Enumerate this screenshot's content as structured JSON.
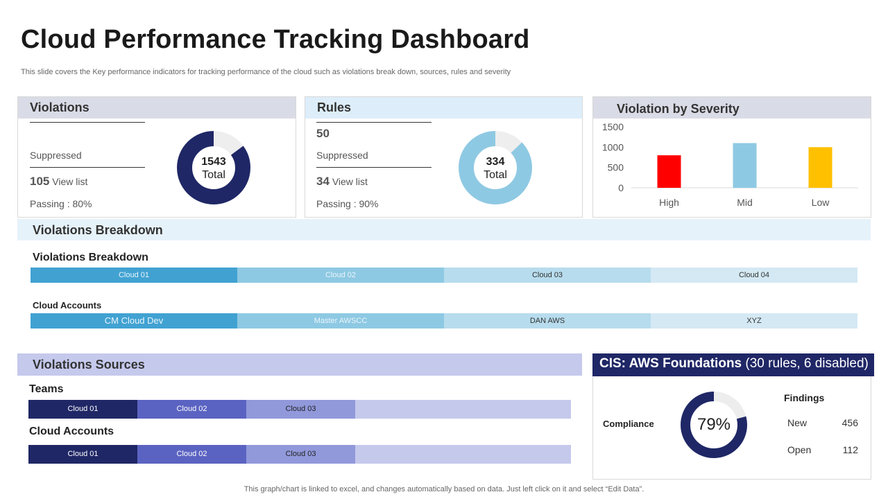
{
  "page": {
    "title": "Cloud Performance Tracking Dashboard",
    "subtitle": "This slide covers the Key performance  indicators for tracking performance of the cloud such as violations break down, sources, rules and severity",
    "footer": "This graph/chart is linked to excel, and changes automatically based on data. Just left click on it and select “Edit Data”."
  },
  "violations": {
    "title": "Violations",
    "suppressed_label": "Suppressed",
    "count": "105",
    "view_label": "View list",
    "passing": "Passing : 80%",
    "total": "1543",
    "total_label": "Total",
    "fill_pct": 85
  },
  "rules": {
    "title": "Rules",
    "value": "50",
    "suppressed_label": "Suppressed",
    "count": "34",
    "view_label": "View list",
    "passing": "Passing : 90%",
    "total": "334",
    "total_label": "Total",
    "fill_pct": 87
  },
  "chart_data": {
    "type": "bar",
    "title": "Violation by Severity",
    "categories": [
      "High",
      "Mid",
      "Low"
    ],
    "values": [
      800,
      1100,
      1000
    ],
    "colors": [
      "#ff0000",
      "#8ec9e3",
      "#ffc000"
    ],
    "yticks": [
      "0",
      "500",
      "1000",
      "1500"
    ],
    "ylim": [
      0,
      1500
    ]
  },
  "breakdown": {
    "band_title": "Violations Breakdown",
    "sub_title": "Violations Breakdown",
    "clouds": [
      "Cloud 01",
      "Cloud 02",
      "Cloud 03",
      "Cloud 04"
    ],
    "accounts_title": "Cloud Accounts",
    "accounts": [
      "CM Cloud Dev",
      "Master AWSCC",
      "DAN AWS",
      "XYZ"
    ]
  },
  "sources": {
    "band_title": "Violations Sources",
    "teams_title": "Teams",
    "teams": [
      "Cloud 01",
      "Cloud 02",
      "Cloud 03"
    ],
    "accounts_title": "Cloud Accounts",
    "accounts": [
      "Cloud 01",
      "Cloud 02",
      "Cloud 03"
    ]
  },
  "cis": {
    "title_bold": "CIS: AWS Foundations",
    "title_rest": " (30 rules, 6 disabled)",
    "compliance_label": "Compliance",
    "compliance_value": "79%",
    "compliance_pct": 79,
    "findings_title": "Findings",
    "findings": [
      {
        "label": "New",
        "value": "456"
      },
      {
        "label": "Open",
        "value": "112"
      }
    ]
  }
}
